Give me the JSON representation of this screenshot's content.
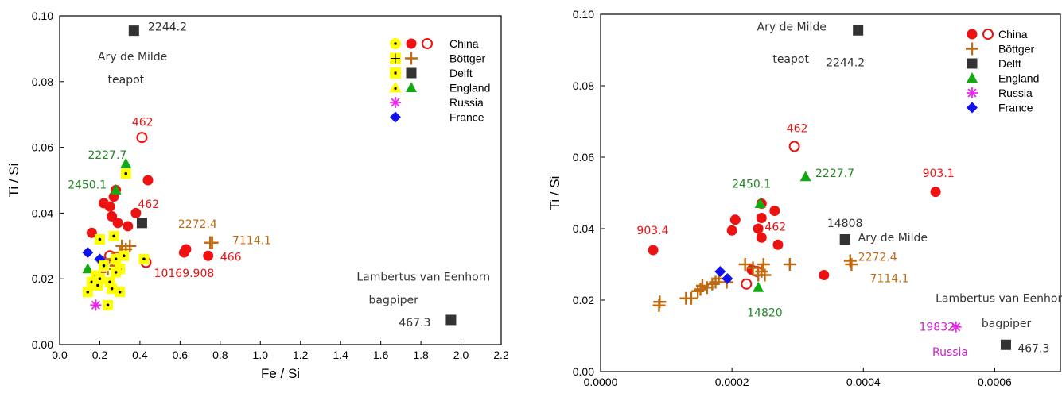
{
  "chart_data": [
    {
      "type": "scatter",
      "xlabel": "Fe / Si",
      "ylabel": "Ti / Si",
      "xlim": [
        0,
        2.2
      ],
      "ylim": [
        0,
        0.1
      ],
      "xticks": [
        "0.0",
        "0.2",
        "0.4",
        "0.6",
        "0.8",
        "1.0",
        "1.2",
        "1.4",
        "1.6",
        "1.8",
        "2.0",
        "2.2"
      ],
      "yticks": [
        "0.00",
        "0.02",
        "0.04",
        "0.06",
        "0.08",
        "0.10"
      ],
      "grid": false,
      "legend_position": "top-right",
      "legend": [
        {
          "label": "China",
          "markers": [
            "dot-yellow",
            "circle-filled-red",
            "circle-open-red"
          ]
        },
        {
          "label": "Böttger",
          "markers": [
            "plus-yellow",
            "plus-brown"
          ]
        },
        {
          "label": "Delft",
          "markers": [
            "square-yellow",
            "square-black"
          ]
        },
        {
          "label": "England",
          "markers": [
            "triangle-yellow",
            "triangle-green"
          ]
        },
        {
          "label": "Russia",
          "markers": [
            "asterisk-magenta"
          ]
        },
        {
          "label": "France",
          "markers": [
            "diamond-blue"
          ]
        }
      ],
      "colors": {
        "china": "#ee1111",
        "bottger": "#c06a10",
        "delft": "#333333",
        "england": "#11aa11",
        "russia": "#ee22ee",
        "france": "#1111ee",
        "highlight": "#ffff00"
      },
      "series": [
        {
          "name": "China",
          "marker": "circle-filled-red",
          "points": [
            [
              0.16,
              0.034
            ],
            [
              0.22,
              0.043
            ],
            [
              0.25,
              0.042
            ],
            [
              0.26,
              0.039
            ],
            [
              0.27,
              0.045
            ],
            [
              0.28,
              0.047
            ],
            [
              0.29,
              0.037
            ],
            [
              0.34,
              0.036
            ],
            [
              0.38,
              0.04
            ],
            [
              0.44,
              0.05
            ],
            [
              0.62,
              0.028
            ],
            [
              0.63,
              0.029
            ],
            [
              0.74,
              0.027
            ]
          ]
        },
        {
          "name": "China",
          "marker": "circle-open-red",
          "points": [
            [
              0.25,
              0.027
            ],
            [
              0.41,
              0.063
            ],
            [
              0.43,
              0.025
            ]
          ]
        },
        {
          "name": "Böttger",
          "marker": "plus-brown",
          "points": [
            [
              0.2,
              0.022
            ],
            [
              0.22,
              0.025
            ],
            [
              0.24,
              0.023
            ],
            [
              0.26,
              0.026
            ],
            [
              0.28,
              0.024
            ],
            [
              0.3,
              0.028
            ],
            [
              0.31,
              0.03
            ],
            [
              0.33,
              0.029
            ],
            [
              0.35,
              0.03
            ],
            [
              0.75,
              0.031
            ],
            [
              0.76,
              0.031
            ]
          ]
        },
        {
          "name": "Delft",
          "marker": "square-black",
          "points": [
            [
              0.41,
              0.037
            ],
            [
              1.95,
              0.0075
            ],
            [
              0.37,
              0.0955
            ]
          ]
        },
        {
          "name": "England",
          "marker": "triangle-green",
          "points": [
            [
              0.14,
              0.023
            ],
            [
              0.28,
              0.047
            ],
            [
              0.33,
              0.055
            ]
          ]
        },
        {
          "name": "Russia",
          "marker": "asterisk-magenta",
          "points": [
            [
              0.18,
              0.012
            ]
          ]
        },
        {
          "name": "France",
          "marker": "diamond-blue",
          "points": [
            [
              0.14,
              0.028
            ],
            [
              0.2,
              0.026
            ]
          ]
        },
        {
          "name": "highlighted",
          "marker": "yellow-square-dot",
          "points": [
            [
              0.14,
              0.016
            ],
            [
              0.16,
              0.019
            ],
            [
              0.18,
              0.021
            ],
            [
              0.19,
              0.018
            ],
            [
              0.2,
              0.02
            ],
            [
              0.22,
              0.024
            ],
            [
              0.24,
              0.012
            ],
            [
              0.26,
              0.017
            ],
            [
              0.27,
              0.033
            ],
            [
              0.28,
              0.026
            ],
            [
              0.3,
              0.023
            ],
            [
              0.3,
              0.016
            ],
            [
              0.32,
              0.027
            ],
            [
              0.33,
              0.052
            ],
            [
              0.42,
              0.026
            ],
            [
              0.2,
              0.032
            ],
            [
              0.25,
              0.019
            ],
            [
              0.28,
              0.022
            ]
          ]
        }
      ],
      "annotations": [
        {
          "text": "2244.2",
          "color": "#333333",
          "at": [
            0.44,
            0.0955
          ]
        },
        {
          "text": "Ary de Milde",
          "color": "#333333",
          "at": [
            0.19,
            0.0865
          ]
        },
        {
          "text": "teapot",
          "color": "#333333",
          "at": [
            0.24,
            0.0795
          ]
        },
        {
          "text": "462",
          "color": "#ee1111",
          "at": [
            0.36,
            0.0665
          ]
        },
        {
          "text": "2227.7",
          "color": "#228822",
          "at": [
            0.14,
            0.0565
          ]
        },
        {
          "text": "2450.1",
          "color": "#228822",
          "at": [
            0.04,
            0.0475
          ]
        },
        {
          "text": "462",
          "color": "#ee1111",
          "at": [
            0.39,
            0.0415
          ]
        },
        {
          "text": "2272.4",
          "color": "#c06a10",
          "at": [
            0.59,
            0.0355
          ]
        },
        {
          "text": "7114.1",
          "color": "#c06a10",
          "at": [
            0.86,
            0.0305
          ]
        },
        {
          "text": "466",
          "color": "#ee1111",
          "at": [
            0.8,
            0.0255
          ]
        },
        {
          "text": "10169.908",
          "color": "#ee1111",
          "at": [
            0.47,
            0.0205
          ]
        },
        {
          "text": "Lambertus van Eenhorn",
          "color": "#333333",
          "at": [
            1.48,
            0.0195
          ]
        },
        {
          "text": "bagpiper",
          "color": "#333333",
          "at": [
            1.54,
            0.0125
          ]
        },
        {
          "text": "467.3",
          "color": "#333333",
          "at": [
            1.69,
            0.0055
          ]
        }
      ]
    },
    {
      "type": "scatter",
      "xlabel": "Zr / Si",
      "ylabel": "Ti / Si",
      "xlim": [
        0,
        0.0007
      ],
      "ylim": [
        0,
        0.1
      ],
      "xticks": [
        "0.0000",
        "0.0002",
        "0.0004",
        "0.0006"
      ],
      "yticks": [
        "0.00",
        "0.02",
        "0.04",
        "0.06",
        "0.08",
        "0.10"
      ],
      "grid": false,
      "legend_position": "top-right",
      "legend": [
        {
          "label": "China",
          "markers": [
            "circle-filled-red",
            "circle-open-red"
          ]
        },
        {
          "label": "Böttger",
          "markers": [
            "plus-brown"
          ]
        },
        {
          "label": "Delft",
          "markers": [
            "square-black"
          ]
        },
        {
          "label": "England",
          "markers": [
            "triangle-green"
          ]
        },
        {
          "label": "Russia",
          "markers": [
            "asterisk-magenta"
          ]
        },
        {
          "label": "France",
          "markers": [
            "diamond-blue"
          ]
        }
      ],
      "series": [
        {
          "name": "China",
          "marker": "circle-filled-red",
          "points": [
            [
              8e-05,
              0.034
            ],
            [
              0.0002,
              0.0395
            ],
            [
              0.000205,
              0.0425
            ],
            [
              0.00023,
              0.0285
            ],
            [
              0.00024,
              0.04
            ],
            [
              0.000245,
              0.0375
            ],
            [
              0.000245,
              0.043
            ],
            [
              0.000245,
              0.047
            ],
            [
              0.000265,
              0.045
            ],
            [
              0.00027,
              0.0355
            ],
            [
              0.00034,
              0.027
            ],
            [
              0.00051,
              0.0503
            ]
          ]
        },
        {
          "name": "China",
          "marker": "circle-open-red",
          "points": [
            [
              0.000222,
              0.0245
            ],
            [
              0.000238,
              0.028
            ],
            [
              0.000295,
              0.063
            ]
          ]
        },
        {
          "name": "Böttger",
          "marker": "plus-brown",
          "points": [
            [
              8.9e-05,
              0.0185
            ],
            [
              9e-05,
              0.0195
            ],
            [
              0.00013,
              0.0205
            ],
            [
              0.000138,
              0.0205
            ],
            [
              0.000148,
              0.0225
            ],
            [
              0.000152,
              0.023
            ],
            [
              0.000155,
              0.024
            ],
            [
              0.000162,
              0.0235
            ],
            [
              0.00017,
              0.0245
            ],
            [
              0.000175,
              0.025
            ],
            [
              0.00018,
              0.026
            ],
            [
              0.000192,
              0.025
            ],
            [
              0.00022,
              0.03
            ],
            [
              0.000232,
              0.029
            ],
            [
              0.00024,
              0.027
            ],
            [
              0.000245,
              0.028
            ],
            [
              0.000248,
              0.03
            ],
            [
              0.00025,
              0.027
            ],
            [
              0.000288,
              0.03
            ],
            [
              0.00038,
              0.031
            ],
            [
              0.000382,
              0.03
            ]
          ]
        },
        {
          "name": "Delft",
          "marker": "square-black",
          "points": [
            [
              0.000392,
              0.0955
            ],
            [
              0.000372,
              0.037
            ],
            [
              0.000617,
              0.0075
            ]
          ]
        },
        {
          "name": "England",
          "marker": "triangle-green",
          "points": [
            [
              0.000243,
              0.047
            ],
            [
              0.000312,
              0.0545
            ],
            [
              0.00024,
              0.0235
            ]
          ]
        },
        {
          "name": "Russia",
          "marker": "asterisk-magenta",
          "points": [
            [
              0.000541,
              0.0125
            ]
          ]
        },
        {
          "name": "France",
          "marker": "diamond-blue",
          "points": [
            [
              0.000182,
              0.028
            ],
            [
              0.000193,
              0.026
            ]
          ]
        }
      ],
      "annotations": [
        {
          "text": "Ary de Milde",
          "color": "#333333",
          "at": [
            0.000238,
            0.0955
          ]
        },
        {
          "text": "teapot",
          "color": "#333333",
          "at": [
            0.000262,
            0.0865
          ]
        },
        {
          "text": "2244.2",
          "color": "#333333",
          "at": [
            0.000343,
            0.0855
          ]
        },
        {
          "text": "462",
          "color": "#ee1111",
          "at": [
            0.000283,
            0.067
          ]
        },
        {
          "text": "903.1",
          "color": "#ee1111",
          "at": [
            0.00049,
            0.0545
          ]
        },
        {
          "text": "2227.7",
          "color": "#228822",
          "at": [
            0.000327,
            0.0545
          ]
        },
        {
          "text": "2450.1",
          "color": "#228822",
          "at": [
            0.0002,
            0.0515
          ]
        },
        {
          "text": "14808",
          "color": "#333333",
          "at": [
            0.000345,
            0.0405
          ]
        },
        {
          "text": "903.4",
          "color": "#ee1111",
          "at": [
            5.5e-05,
            0.0385
          ]
        },
        {
          "text": "462",
          "color": "#ee1111",
          "at": [
            0.00025,
            0.0395
          ]
        },
        {
          "text": "Ary de Milde",
          "color": "#333333",
          "at": [
            0.000392,
            0.0365
          ]
        },
        {
          "text": "2272.4",
          "color": "#c06a10",
          "at": [
            0.000392,
            0.031
          ]
        },
        {
          "text": "7114.1",
          "color": "#c06a10",
          "at": [
            0.00041,
            0.025
          ]
        },
        {
          "text": "14820",
          "color": "#228822",
          "at": [
            0.000223,
            0.0155
          ]
        },
        {
          "text": "Lambertus van Eenhorn",
          "color": "#333333",
          "at": [
            0.00051,
            0.0195
          ]
        },
        {
          "text": "bagpiper",
          "color": "#333333",
          "at": [
            0.00058,
            0.0125
          ]
        },
        {
          "text": "19832",
          "color": "#cc22cc",
          "at": [
            0.000485,
            0.0115
          ]
        },
        {
          "text": "Russia",
          "color": "#cc22cc",
          "at": [
            0.000505,
            0.0045
          ]
        },
        {
          "text": "467.3",
          "color": "#333333",
          "at": [
            0.000635,
            0.0055
          ]
        }
      ]
    }
  ]
}
